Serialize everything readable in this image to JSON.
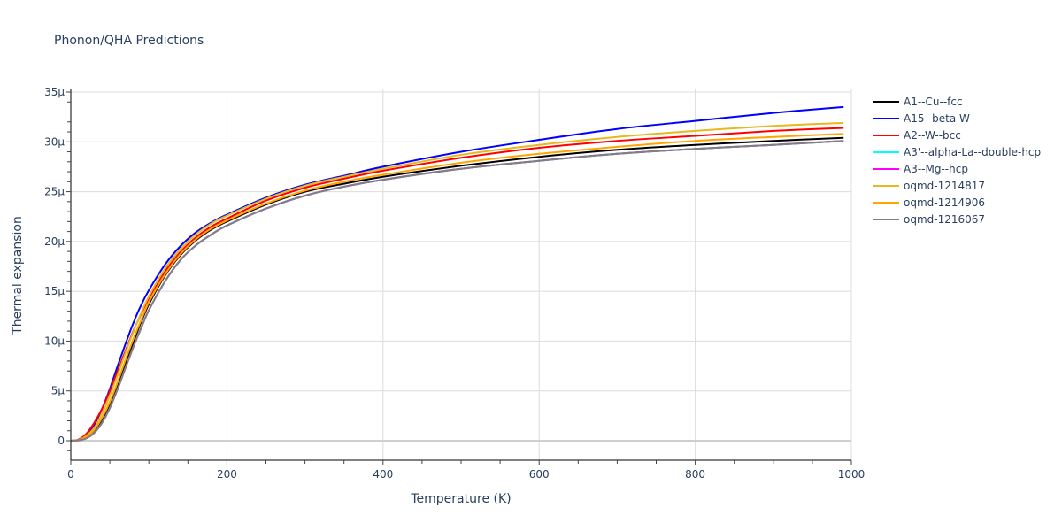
{
  "chart": {
    "title": "Phonon/QHA Predictions",
    "xlabel": "Temperature (K)",
    "ylabel": "Thermal expansion"
  },
  "chart_data": {
    "type": "line",
    "title": "Phonon/QHA Predictions",
    "xlabel": "Temperature (K)",
    "ylabel": "Thermal expansion",
    "xlim": [
      0,
      1000
    ],
    "ylim": [
      -2e-06,
      3.55e-05
    ],
    "x_ticks": [
      0,
      200,
      400,
      600,
      800,
      1000
    ],
    "x_tick_labels": [
      "0",
      "200",
      "400",
      "600",
      "800",
      "1000"
    ],
    "y_ticks": [
      0,
      5e-06,
      1e-05,
      1.5e-05,
      2e-05,
      2.5e-05,
      3e-05,
      3.5e-05
    ],
    "y_tick_labels": [
      "0",
      "5μ",
      "10μ",
      "15μ",
      "20μ",
      "25μ",
      "30μ",
      "35μ"
    ],
    "grid": true,
    "legend_position": "right",
    "x": [
      0,
      10,
      20,
      30,
      40,
      50,
      60,
      70,
      80,
      90,
      100,
      120,
      140,
      160,
      180,
      200,
      250,
      300,
      350,
      400,
      500,
      600,
      700,
      800,
      900,
      990
    ],
    "series": [
      {
        "name": "A1--Cu--fcc",
        "color": "#000000",
        "values": [
          0,
          5e-08,
          3e-07,
          9e-07,
          2e-06,
          3.6e-06,
          5.6e-06,
          7.8e-06,
          9.9e-06,
          1.19e-05,
          1.37e-05,
          1.65e-05,
          1.86e-05,
          2.01e-05,
          2.12e-05,
          2.2e-05,
          2.37e-05,
          2.5e-05,
          2.58e-05,
          2.65e-05,
          2.76e-05,
          2.85e-05,
          2.92e-05,
          2.97e-05,
          3.01e-05,
          3.04e-05
        ]
      },
      {
        "name": "A15--beta-W",
        "color": "#0000ff",
        "values": [
          0,
          1e-07,
          6e-07,
          1.6e-06,
          3.2e-06,
          5.2e-06,
          7.5e-06,
          9.7e-06,
          1.18e-05,
          1.36e-05,
          1.51e-05,
          1.76e-05,
          1.95e-05,
          2.09e-05,
          2.19e-05,
          2.27e-05,
          2.44e-05,
          2.57e-05,
          2.66e-05,
          2.75e-05,
          2.9e-05,
          3.02e-05,
          3.13e-05,
          3.21e-05,
          3.29e-05,
          3.35e-05
        ]
      },
      {
        "name": "A2--W--bcc",
        "color": "#ff0000",
        "values": [
          0,
          1.2e-07,
          7e-07,
          1.8e-06,
          3.2e-06,
          5e-06,
          7e-06,
          9e-06,
          1.1e-05,
          1.27e-05,
          1.43e-05,
          1.69e-05,
          1.89e-05,
          2.04e-05,
          2.15e-05,
          2.23e-05,
          2.41e-05,
          2.54e-05,
          2.63e-05,
          2.71e-05,
          2.84e-05,
          2.94e-05,
          3.01e-05,
          3.06e-05,
          3.11e-05,
          3.14e-05
        ]
      },
      {
        "name": "A3'--alpha-La--double-hcp",
        "color": "#00ffff",
        "values": [
          0,
          4e-08,
          2.5e-07,
          8e-07,
          1.8e-06,
          3.3e-06,
          5.2e-06,
          7.3e-06,
          9.4e-06,
          1.13e-05,
          1.31e-05,
          1.59e-05,
          1.81e-05,
          1.96e-05,
          2.07e-05,
          2.16e-05,
          2.33e-05,
          2.46e-05,
          2.55e-05,
          2.62e-05,
          2.73e-05,
          2.81e-05,
          2.88e-05,
          2.93e-05,
          2.97e-05,
          3.01e-05
        ]
      },
      {
        "name": "A3--Mg--hcp",
        "color": "#ff00ff",
        "values": [
          0,
          4e-08,
          2.5e-07,
          8e-07,
          1.8e-06,
          3.3e-06,
          5.2e-06,
          7.3e-06,
          9.4e-06,
          1.13e-05,
          1.31e-05,
          1.59e-05,
          1.81e-05,
          1.96e-05,
          2.07e-05,
          2.16e-05,
          2.33e-05,
          2.46e-05,
          2.55e-05,
          2.62e-05,
          2.73e-05,
          2.81e-05,
          2.88e-05,
          2.93e-05,
          2.97e-05,
          3.01e-05
        ]
      },
      {
        "name": "oqmd-1214817",
        "color": "#e6b91e",
        "values": [
          0,
          8e-08,
          5e-07,
          1.3e-06,
          2.7e-06,
          4.5e-06,
          6.6e-06,
          8.8e-06,
          1.09e-05,
          1.28e-05,
          1.45e-05,
          1.72e-05,
          1.92e-05,
          2.07e-05,
          2.18e-05,
          2.26e-05,
          2.43e-05,
          2.56e-05,
          2.65e-05,
          2.73e-05,
          2.87e-05,
          2.97e-05,
          3.05e-05,
          3.11e-05,
          3.16e-05,
          3.19e-05
        ]
      },
      {
        "name": "oqmd-1214906",
        "color": "#ffa500",
        "values": [
          0,
          6e-08,
          4e-07,
          1.1e-06,
          2.3e-06,
          3.9e-06,
          5.9e-06,
          8.1e-06,
          1.02e-05,
          1.21e-05,
          1.39e-05,
          1.66e-05,
          1.87e-05,
          2.02e-05,
          2.13e-05,
          2.21e-05,
          2.38e-05,
          2.51e-05,
          2.6e-05,
          2.67e-05,
          2.79e-05,
          2.88e-05,
          2.95e-05,
          3.01e-05,
          3.05e-05,
          3.08e-05
        ]
      },
      {
        "name": "oqmd-1216067",
        "color": "#808080",
        "values": [
          0,
          4e-08,
          2.5e-07,
          8e-07,
          1.8e-06,
          3.3e-06,
          5.2e-06,
          7.3e-06,
          9.4e-06,
          1.13e-05,
          1.31e-05,
          1.59e-05,
          1.81e-05,
          1.96e-05,
          2.07e-05,
          2.16e-05,
          2.33e-05,
          2.46e-05,
          2.55e-05,
          2.62e-05,
          2.73e-05,
          2.81e-05,
          2.88e-05,
          2.93e-05,
          2.97e-05,
          3.01e-05
        ]
      }
    ]
  }
}
